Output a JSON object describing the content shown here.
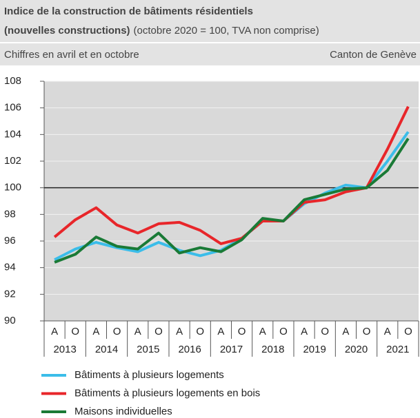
{
  "chart_data": {
    "type": "line",
    "title": [
      "Indice de la construction de bâtiments résidentiels",
      "(nouvelles constructions)"
    ],
    "subtitle": "(octobre 2020 = 100, TVA non comprise)",
    "note": "Chiffres en avril et en octobre",
    "source": "Canton de Genève",
    "categories": [
      "A",
      "O",
      "A",
      "O",
      "A",
      "O",
      "A",
      "O",
      "A",
      "O",
      "A",
      "O",
      "A",
      "O",
      "A",
      "O",
      "A",
      "O"
    ],
    "groups": [
      "2013",
      "2014",
      "2015",
      "2016",
      "2017",
      "2018",
      "2019",
      "2020",
      "2021"
    ],
    "series": [
      {
        "name": "Bâtiments à plusieurs logements",
        "color": "#3bbde9",
        "values": [
          94.6,
          95.4,
          95.9,
          95.5,
          95.2,
          95.9,
          95.3,
          94.9,
          95.3,
          96.2,
          97.5,
          97.5,
          98.8,
          99.6,
          100.2,
          100.0,
          102.0,
          104.2
        ]
      },
      {
        "name": "Bâtiments à plusieurs logements en bois",
        "color": "#e8262a",
        "values": [
          96.3,
          97.6,
          98.5,
          97.2,
          96.6,
          97.3,
          97.4,
          96.8,
          95.8,
          96.2,
          97.5,
          97.5,
          98.9,
          99.1,
          99.7,
          100.0,
          102.9,
          106.1
        ]
      },
      {
        "name": "Maisons individuelles",
        "color": "#1a7a36",
        "values": [
          94.4,
          95.0,
          96.3,
          95.6,
          95.4,
          96.6,
          95.1,
          95.5,
          95.2,
          96.1,
          97.7,
          97.5,
          99.1,
          99.5,
          99.9,
          100.0,
          101.3,
          103.7
        ]
      }
    ],
    "reference_line": 100,
    "ylim": [
      90,
      108
    ],
    "yticks": [
      90,
      92,
      94,
      96,
      98,
      100,
      102,
      104,
      106,
      108
    ],
    "grid": true
  }
}
